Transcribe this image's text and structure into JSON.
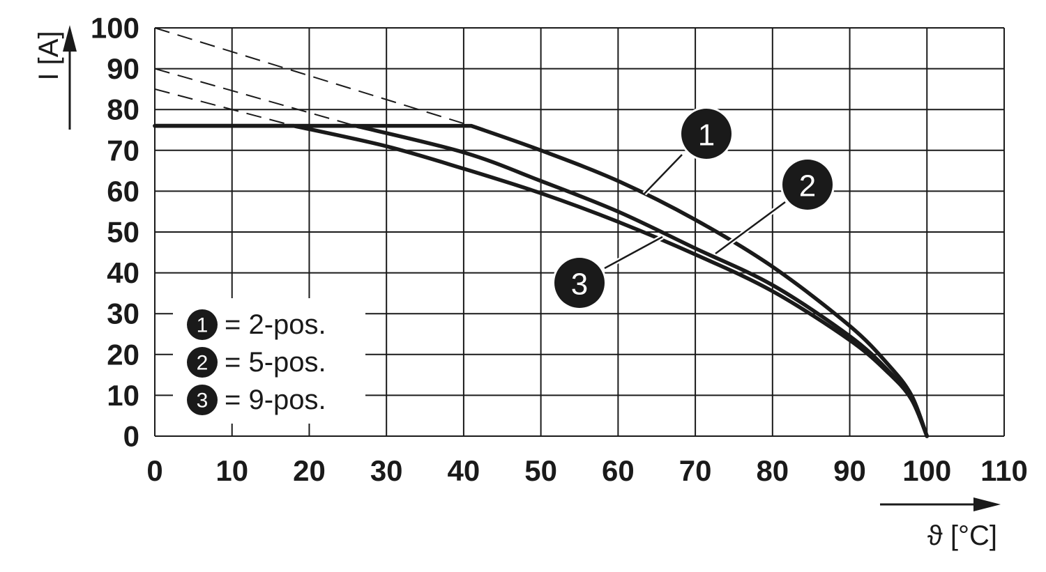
{
  "chart_data": {
    "type": "line",
    "xlabel": "ϑ [°C]",
    "ylabel": "I [A]",
    "xlim": [
      0,
      110
    ],
    "ylim": [
      0,
      100
    ],
    "xticks": [
      "0",
      "10",
      "20",
      "30",
      "40",
      "50",
      "60",
      "70",
      "80",
      "90",
      "100",
      "110"
    ],
    "yticks": [
      "0",
      "10",
      "20",
      "30",
      "40",
      "50",
      "60",
      "70",
      "80",
      "90",
      "100"
    ],
    "grid": true,
    "legend_position": "bottom-left",
    "colors": {
      "line": "#1a1a1a",
      "grid": "#1a1a1a",
      "badge": "#1a1a1a",
      "badge_text": "#ffffff"
    },
    "series": [
      {
        "name": "1",
        "label": "= 2-pos.",
        "limit": 76,
        "x": [
          0,
          41,
          50,
          60,
          70,
          80,
          90,
          95,
          98,
          100
        ],
        "y": [
          76,
          76,
          70,
          62.5,
          53,
          41.5,
          27,
          17.5,
          10,
          0
        ],
        "extrapolated": {
          "x": [
            0,
            41
          ],
          "y": [
            100,
            76
          ]
        }
      },
      {
        "name": "2",
        "label": "= 5-pos.",
        "limit": 76,
        "x": [
          0,
          26,
          40,
          50,
          60,
          70,
          80,
          90,
          95,
          98,
          100
        ],
        "y": [
          76,
          76,
          69.5,
          62.5,
          55,
          46,
          37,
          24.5,
          16,
          9,
          0
        ],
        "extrapolated": {
          "x": [
            0,
            26
          ],
          "y": [
            90,
            76
          ]
        }
      },
      {
        "name": "3",
        "label": "= 9-pos.",
        "limit": 76,
        "x": [
          0,
          18,
          30,
          40,
          50,
          60,
          70,
          80,
          90,
          95,
          98,
          100
        ],
        "y": [
          76,
          76,
          71,
          65.5,
          59.5,
          52.5,
          44.5,
          35.5,
          23.5,
          15.5,
          9,
          0
        ],
        "extrapolated": {
          "x": [
            0,
            18
          ],
          "y": [
            85,
            76
          ]
        }
      }
    ],
    "callouts": [
      {
        "series": "1",
        "text": "1"
      },
      {
        "series": "2",
        "text": "2"
      },
      {
        "series": "3",
        "text": "3"
      }
    ],
    "legend": [
      {
        "num": "1",
        "text": "= 2-pos."
      },
      {
        "num": "2",
        "text": "= 5-pos."
      },
      {
        "num": "3",
        "text": "= 9-pos."
      }
    ]
  }
}
